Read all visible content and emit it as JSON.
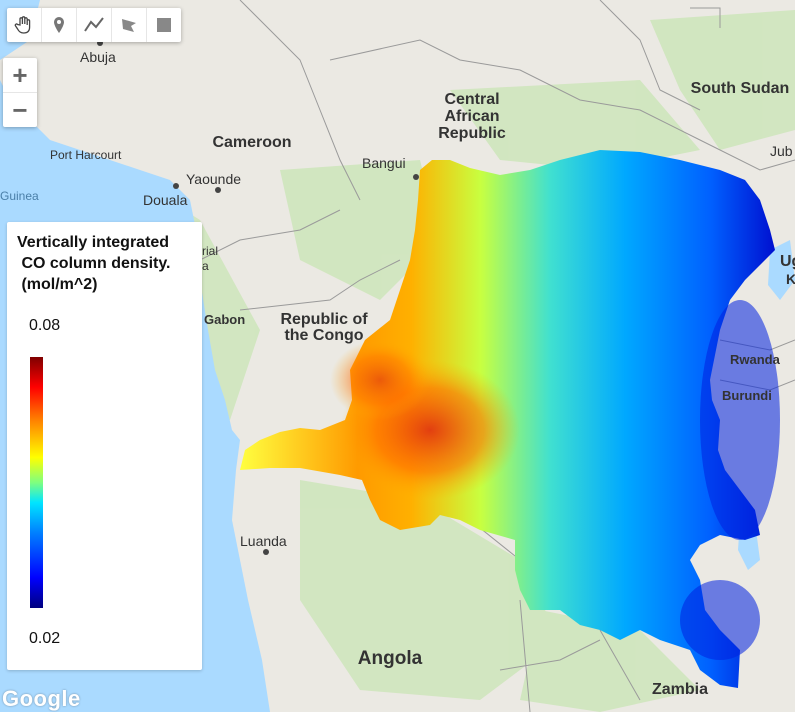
{
  "map": {
    "countries": [
      {
        "name": "Central\nAfrican\nRepublic",
        "lines": [
          "Central",
          "African",
          "Republic"
        ]
      },
      {
        "name": "Cameroon",
        "lines": [
          "Cameroon"
        ]
      },
      {
        "name": "South Sudan",
        "lines": [
          "South Sudan"
        ]
      },
      {
        "name": "Republic of\nthe Congo",
        "lines": [
          "Republic of",
          "the Congo"
        ]
      },
      {
        "name": "Gabon",
        "lines": [
          "Gabon"
        ]
      },
      {
        "name": "Rwanda",
        "lines": [
          "Rwanda"
        ]
      },
      {
        "name": "Burundi",
        "lines": [
          "Burundi"
        ]
      },
      {
        "name": "Angola",
        "lines": [
          "Angola"
        ]
      },
      {
        "name": "Zambia",
        "lines": [
          "Zambia"
        ]
      },
      {
        "name": "Ug",
        "lines": [
          "Ug"
        ]
      },
      {
        "name": "K",
        "lines": [
          "K"
        ]
      }
    ],
    "cities": [
      "Abuja",
      "Port Harcourt",
      "Yaounde",
      "Douala",
      "Bangui",
      "Luanda",
      "Jub"
    ],
    "water_labels": [
      "Guinea"
    ],
    "partial_labels": [
      "rial",
      "a"
    ]
  },
  "toolbar": {
    "tools": [
      {
        "name": "pan",
        "icon": "hand-icon"
      },
      {
        "name": "point",
        "icon": "marker-icon"
      },
      {
        "name": "line",
        "icon": "polyline-icon"
      },
      {
        "name": "polygon",
        "icon": "polygon-icon"
      },
      {
        "name": "rectangle",
        "icon": "rectangle-icon"
      }
    ]
  },
  "zoom": {
    "in_label": "+",
    "out_label": "−"
  },
  "legend": {
    "title": "Vertically integrated\n CO column density.\n (mol/m^2)",
    "max": "0.08",
    "min": "0.02",
    "palette": [
      "#00007f",
      "#0000ff",
      "#0080ff",
      "#00e5ff",
      "#7fff7f",
      "#ffff00",
      "#ff8000",
      "#ff0000",
      "#7f0000"
    ]
  },
  "attribution": {
    "logo": "Google"
  },
  "colors": {
    "water": "#aadaff",
    "land": "#e8e6e0",
    "vegetation": "#cde8b8",
    "border": "#9a9a9a"
  }
}
